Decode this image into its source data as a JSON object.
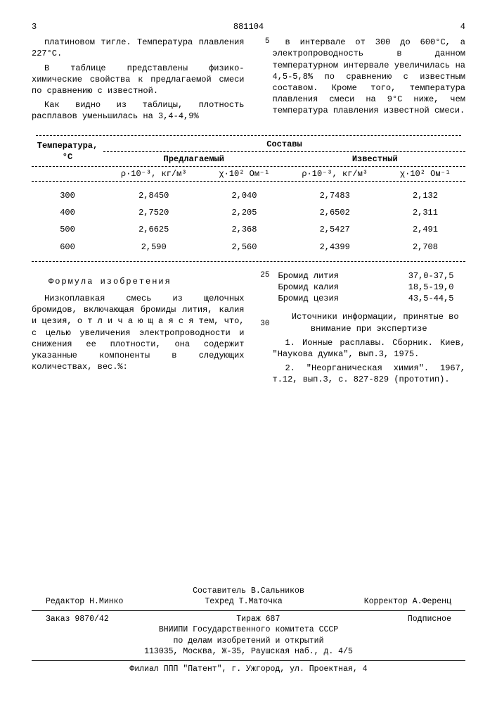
{
  "header": {
    "page_left": "3",
    "doc_number": "881104",
    "page_right": "4"
  },
  "left_col": {
    "p1": "платиновом тигле. Температура плавления 227°С.",
    "p2": "В таблице представлены физико-химические свойства к предлагаемой смеси по сравнению с известной.",
    "p3": "Как видно из таблицы, плотность расплавов уменьшилась на 3,4-4,9%"
  },
  "right_col": {
    "p1": "в интервале от 300 до 600°С, а электропроводность в данном температурном интервале увеличилась на 4,5-5,8% по сравнению с известным составом. Кроме того, температура плавления смеси на 9°С ниже, чем температура плавления известной смеси."
  },
  "table": {
    "h_temp": "Температура, °С",
    "h_sostavy": "Составы",
    "h_proposed": "Предлагаемый",
    "h_known": "Известный",
    "h_rho": "ρ·10⁻³, кг/м³",
    "h_chi": "χ·10² Ом⁻¹",
    "rows": [
      {
        "t": "300",
        "r1": "2,8450",
        "c1": "2,040",
        "r2": "2,7483",
        "c2": "2,132"
      },
      {
        "t": "400",
        "r1": "2,7520",
        "c1": "2,205",
        "r2": "2,6502",
        "c2": "2,311"
      },
      {
        "t": "500",
        "r1": "2,6625",
        "c1": "2,368",
        "r2": "2,5427",
        "c2": "2,491"
      },
      {
        "t": "600",
        "r1": "2,590",
        "c1": "2,560",
        "r2": "2,4399",
        "c2": "2,708"
      }
    ]
  },
  "formula": {
    "title": "Формула изобретения",
    "body": "Низкоплавкая смесь из щелочных бромидов, включающая бромиды лития, калия и цезия, о т л и ч а ю щ а я с я  тем, что, с целью увеличения электропроводности и снижения ее плотности, она содержит указанные компоненты в следующих количествах, вес.%:"
  },
  "components": {
    "li": {
      "name": "Бромид лития",
      "val": "37,0-37,5"
    },
    "k": {
      "name": "Бромид калия",
      "val": "18,5-19,0"
    },
    "cs": {
      "name": "Бромид цезия",
      "val": "43,5-44,5"
    }
  },
  "sources": {
    "title": "Источники информации, принятые во внимание при экспертизе",
    "s1": "1. Ионные расплавы. Сборник. Киев, \"Наукова думка\", вып.3, 1975.",
    "s2": "2. \"Неорганическая химия\". 1967, т.12, вып.3, с. 827-829 (прототип)."
  },
  "gutters": {
    "g5": "5",
    "g25": "25",
    "g30": "30"
  },
  "footer": {
    "compiler": "Составитель В.Сальников",
    "editor_l": "Редактор Н.Минко",
    "tech_l": "Техред Т.Маточка",
    "corr_l": "Корректор А.Ференц",
    "order": "Заказ 9870/42",
    "tirazh": "Тираж 687",
    "podpis": "Подписное",
    "org1": "ВНИИПИ Государственного комитета СССР",
    "org2": "по делам изобретений и открытий",
    "addr": "113035, Москва, Ж-35, Раушская наб., д. 4/5",
    "branch": "Филиал ППП \"Патент\", г. Ужгород, ул. Проектная, 4"
  }
}
